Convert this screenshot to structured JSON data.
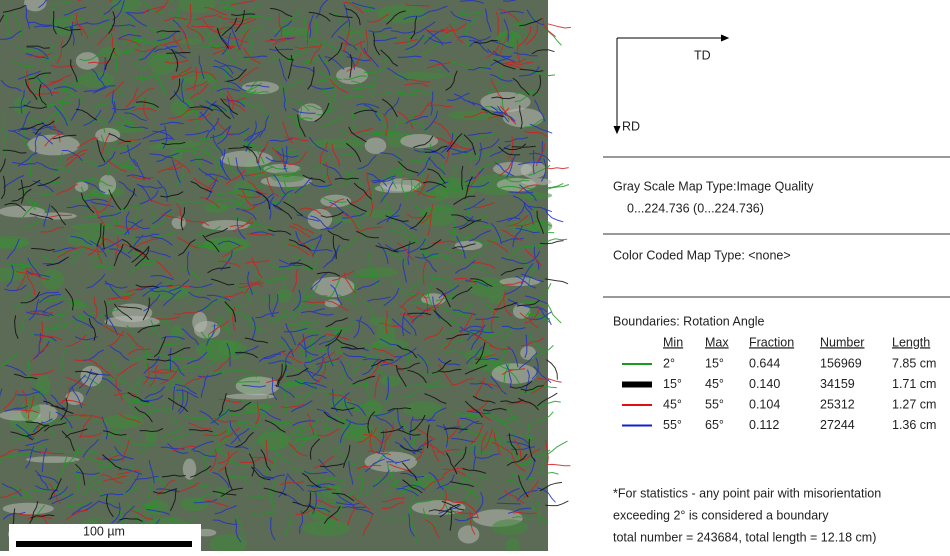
{
  "map": {
    "scale_bar": "100 µm"
  },
  "axes": {
    "x_label": "TD",
    "y_label": "RD"
  },
  "gray_scale": {
    "title": "Gray Scale Map Type:Image Quality",
    "range": "0...224.736 (0...224.736)"
  },
  "color_coded": {
    "title": "Color Coded Map Type: <none>"
  },
  "boundaries": {
    "title": "Boundaries: Rotation Angle",
    "headers": [
      "Min",
      "Max",
      "Fraction",
      "Number",
      "Length"
    ],
    "rows": [
      {
        "color": "#1a9a1a",
        "cells": [
          "2°",
          "15°",
          "0.644",
          "156969",
          "7.85 cm"
        ]
      },
      {
        "color": "#000000",
        "cells": [
          "15°",
          "45°",
          "0.140",
          "34159",
          "1.71 cm"
        ]
      },
      {
        "color": "#e01010",
        "cells": [
          "45°",
          "55°",
          "0.104",
          "25312",
          "1.27 cm"
        ]
      },
      {
        "color": "#1020d0",
        "cells": [
          "55°",
          "65°",
          "0.112",
          "27244",
          "1.36 cm"
        ]
      }
    ]
  },
  "notes": [
    "*For statistics - any point pair with misorientation",
    "exceeding 2° is considered a boundary",
    "total number = 243684, total length = 12.18 cm)"
  ]
}
